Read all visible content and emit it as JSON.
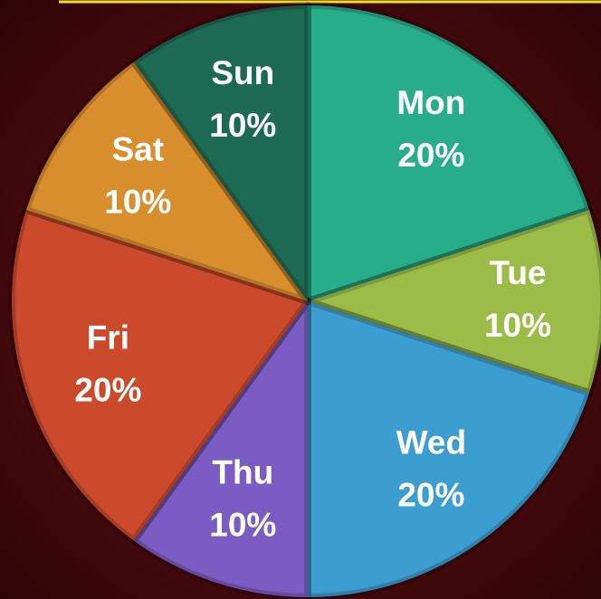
{
  "chart_data": {
    "type": "pie",
    "categories": [
      "Mon",
      "Tue",
      "Wed",
      "Thu",
      "Fri",
      "Sat",
      "Sun"
    ],
    "values": [
      20,
      10,
      20,
      10,
      20,
      10,
      10
    ],
    "value_labels": [
      "20%",
      "10%",
      "20%",
      "10%",
      "20%",
      "10%",
      "10%"
    ],
    "colors": [
      "#27ad89",
      "#9bbd47",
      "#3c9dd1",
      "#7a5cc3",
      "#cb4a2c",
      "#d98e2e",
      "#1d6a52"
    ]
  }
}
